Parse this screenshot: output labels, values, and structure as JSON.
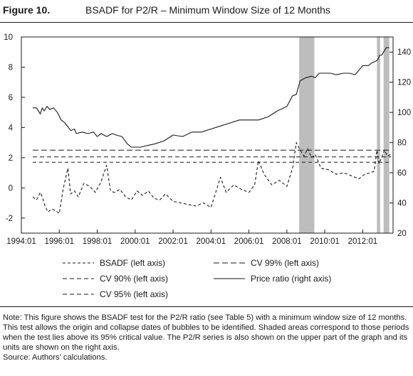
{
  "header": {
    "figure_label": "Figure 10.",
    "title": "BSADF for P2/R – Minimum Window Size of 12 Months"
  },
  "legend": {
    "items": [
      {
        "label": "BSADF (left axis)",
        "style": "dash-short"
      },
      {
        "label": "CV 99% (left axis)",
        "style": "dash-long"
      },
      {
        "label": "CV 90% (left axis)",
        "style": "dash-medium"
      },
      {
        "label": "Price ratio (right axis)",
        "style": "solid"
      },
      {
        "label": "CV 95% (left axis)",
        "style": "dash-medium"
      }
    ]
  },
  "notes": {
    "text": "Note: This figure shows the BSADF test for the P2/R ratio (see Table 5) with a minimum window size of 12 months. This test allows the origin and collapse dates of bubbles to be identified. Shaded areas correspond to those periods when the test lies above its 95% critical value. The P2/R series is also shown on the upper part of the graph and its units are shown on the right axis.",
    "source": "Source: Authors' calculations."
  },
  "chart_data": {
    "type": "line",
    "x_ticks": [
      "1994:01",
      "1996:01",
      "1998:01",
      "2000:01",
      "2002:01",
      "2004:01",
      "2006:01",
      "2008:01",
      "2010:01",
      "2012:01"
    ],
    "xlim": [
      1994.0,
      2013.6
    ],
    "left_axis": {
      "ylim": [
        -3,
        10
      ],
      "ticks": [
        -2,
        0,
        2,
        4,
        6,
        8,
        10
      ]
    },
    "right_axis": {
      "ylim": [
        20,
        150
      ],
      "ticks": [
        20,
        40,
        60,
        80,
        100,
        120,
        140
      ]
    },
    "shaded_periods": [
      [
        2008.65,
        2009.45
      ],
      [
        2012.75,
        2012.92
      ],
      [
        2013.1,
        2013.4
      ]
    ],
    "critical_values": [
      {
        "name": "CV 99%",
        "value": 2.5
      },
      {
        "name": "CV 95%",
        "value": 2.05
      },
      {
        "name": "CV 90%",
        "value": 1.7
      }
    ],
    "series": [
      {
        "name": "Price ratio",
        "axis": "right",
        "x": [
          1994.6,
          1994.8,
          1995.0,
          1995.1,
          1995.2,
          1995.35,
          1995.5,
          1995.7,
          1995.9,
          1996.1,
          1996.3,
          1996.6,
          1996.8,
          1996.9,
          1997.2,
          1997.5,
          1997.8,
          1998.0,
          1998.2,
          1998.5,
          1998.8,
          1999.0,
          1999.3,
          1999.6,
          1999.8,
          2000.0,
          2000.3,
          2000.6,
          2001.0,
          2001.5,
          2002.0,
          2002.5,
          2003.0,
          2003.5,
          2004.0,
          2004.5,
          2005.0,
          2005.5,
          2006.0,
          2006.5,
          2007.0,
          2007.5,
          2008.0,
          2008.3,
          2008.5,
          2008.7,
          2009.0,
          2009.3,
          2009.5,
          2009.7,
          2010.0,
          2010.3,
          2010.6,
          2011.0,
          2011.3,
          2011.6,
          2012.0,
          2012.3,
          2012.5,
          2012.7,
          2012.8,
          2012.9,
          2013.0,
          2013.1,
          2013.25,
          2013.4
        ],
        "values": [
          103,
          103,
          99,
          103,
          101,
          104,
          102,
          103,
          100,
          95,
          93,
          88,
          89,
          86,
          87,
          86,
          87,
          84,
          86,
          84,
          86,
          85,
          84,
          79,
          77,
          77,
          77,
          78,
          79,
          81,
          85,
          84,
          87,
          87,
          89,
          91,
          93,
          95,
          95,
          95,
          97,
          101,
          104,
          111,
          112,
          121,
          123,
          124,
          123,
          126,
          126,
          126,
          125,
          126,
          126,
          125,
          131,
          131,
          133,
          134,
          135,
          138,
          138,
          140,
          143,
          143
        ]
      },
      {
        "name": "BSADF",
        "axis": "left",
        "x": [
          1994.6,
          1994.8,
          1995.0,
          1995.1,
          1995.25,
          1995.4,
          1995.6,
          1995.8,
          1996.0,
          1996.2,
          1996.45,
          1996.6,
          1996.8,
          1997.0,
          1997.3,
          1997.6,
          1997.9,
          1998.2,
          1998.5,
          1998.7,
          1998.9,
          1999.2,
          1999.5,
          1999.8,
          2000.1,
          2000.4,
          2000.7,
          2001.0,
          2001.3,
          2001.6,
          2002.0,
          2002.4,
          2002.8,
          2003.2,
          2003.6,
          2004.0,
          2004.3,
          2004.5,
          2004.8,
          2005.2,
          2005.6,
          2006.0,
          2006.3,
          2006.5,
          2006.8,
          2007.2,
          2007.6,
          2008.0,
          2008.3,
          2008.5,
          2008.7,
          2008.9,
          2009.1,
          2009.3,
          2009.5,
          2009.8,
          2010.2,
          2010.6,
          2011.0,
          2011.4,
          2011.8,
          2012.1,
          2012.4,
          2012.6,
          2012.75,
          2012.85,
          2013.0,
          2013.15,
          2013.3,
          2013.45
        ],
        "values": [
          -0.6,
          -0.8,
          -0.3,
          -0.6,
          -1.2,
          -1.6,
          -1.4,
          -1.5,
          -1.7,
          -0.1,
          1.3,
          -0.4,
          -0.2,
          -0.6,
          0.3,
          0.1,
          -0.3,
          0.4,
          1.5,
          -0.2,
          -0.3,
          -0.1,
          -0.6,
          -0.8,
          -0.2,
          -0.5,
          -0.2,
          -0.7,
          -0.8,
          -0.4,
          -0.9,
          -1.0,
          -1.1,
          -1.2,
          -1.0,
          -1.3,
          -0.1,
          0.7,
          -0.3,
          0.2,
          -0.1,
          -0.3,
          0.2,
          1.8,
          0.9,
          0.2,
          0.5,
          0.1,
          1.3,
          3.0,
          2.5,
          2.1,
          2.6,
          2.0,
          2.2,
          1.3,
          1.2,
          0.9,
          1.0,
          0.8,
          0.6,
          0.9,
          1.0,
          1.1,
          2.5,
          1.6,
          2.0,
          2.5,
          2.1,
          2.2
        ]
      }
    ]
  }
}
